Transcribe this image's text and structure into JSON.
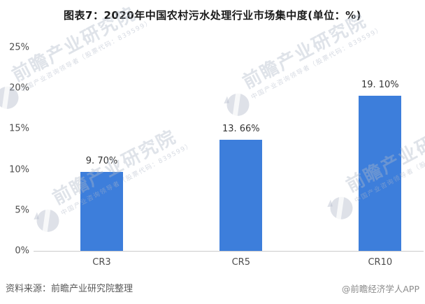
{
  "title": "图表7：2020年中国农村污水处理行业市场集中度(单位：%)",
  "chart_data": {
    "type": "bar",
    "title": "图表7：2020年中国农村污水处理行业市场集中度(单位：%)",
    "categories": [
      "CR3",
      "CR5",
      "CR10"
    ],
    "values": [
      9.7,
      13.66,
      19.1
    ],
    "value_labels": [
      "9. 70%",
      "13. 66%",
      "19. 10%"
    ],
    "unit": "%",
    "xlabel": "",
    "ylabel": "",
    "ylim": [
      0,
      25
    ],
    "ytick_labels": [
      "0%",
      "5%",
      "10%",
      "15%",
      "20%",
      "25%"
    ],
    "grid": false,
    "legend": false,
    "bar_color": "#3D7EDB"
  },
  "footer": {
    "source": "资料来源：前瞻产业研究院整理",
    "brand": "@前瞻经济学人APP"
  },
  "watermark": {
    "text": "前瞻产业研究院",
    "subtext": "中国产业咨询领导者（股票代码：839599）"
  },
  "colors": {
    "bar": "#3D7EDB",
    "axis_line": "#cccccc",
    "title_text": "#1a1a1a",
    "value_text": "#333333",
    "tick_text": "#4d4d4d",
    "source_text": "#595959",
    "brand_text": "#8c8c8c",
    "watermark": "#b0b8c8"
  }
}
